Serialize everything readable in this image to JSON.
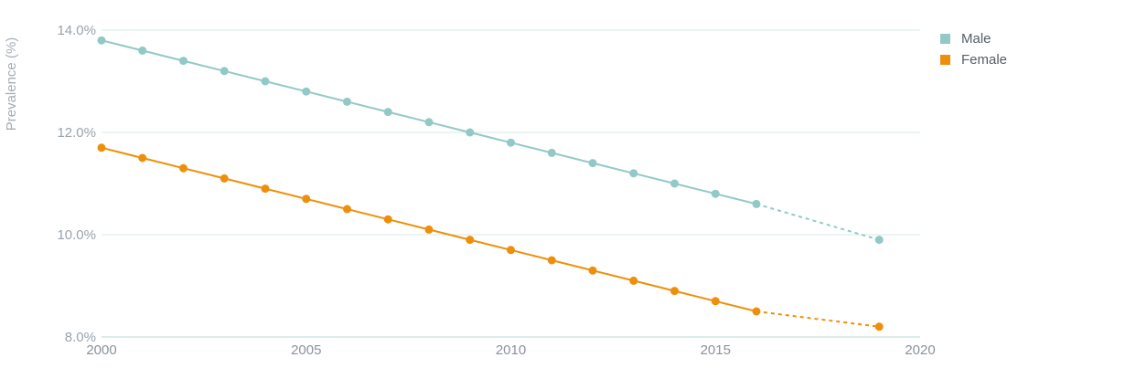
{
  "chart_data": {
    "type": "line",
    "ylabel": "Prevalence (%)",
    "xlabel": "",
    "xlim": [
      2000,
      2020
    ],
    "ylim": [
      8.0,
      14.0
    ],
    "x_ticks": [
      "2000",
      "2005",
      "2010",
      "2015",
      "2020"
    ],
    "y_ticks": [
      "8.0%",
      "10.0%",
      "12.0%",
      "14.0%"
    ],
    "grid": true,
    "legend_position": "top-right",
    "series": [
      {
        "name": "Male",
        "color": "#92c9c6",
        "x": [
          2000,
          2001,
          2002,
          2003,
          2004,
          2005,
          2006,
          2007,
          2008,
          2009,
          2010,
          2011,
          2012,
          2013,
          2014,
          2015,
          2016
        ],
        "values": [
          13.8,
          13.6,
          13.4,
          13.2,
          13.0,
          12.8,
          12.6,
          12.4,
          12.2,
          12.0,
          11.8,
          11.6,
          11.4,
          11.2,
          11.0,
          10.8,
          10.6
        ],
        "projection": {
          "x": [
            2019
          ],
          "values": [
            9.9
          ]
        }
      },
      {
        "name": "Female",
        "color": "#ee8f0b",
        "x": [
          2000,
          2001,
          2002,
          2003,
          2004,
          2005,
          2006,
          2007,
          2008,
          2009,
          2010,
          2011,
          2012,
          2013,
          2014,
          2015,
          2016
        ],
        "values": [
          11.7,
          11.5,
          11.3,
          11.1,
          10.9,
          10.7,
          10.5,
          10.3,
          10.1,
          9.9,
          9.7,
          9.5,
          9.3,
          9.1,
          8.9,
          8.7,
          8.5
        ],
        "projection": {
          "x": [
            2019
          ],
          "values": [
            8.2
          ]
        }
      }
    ]
  }
}
